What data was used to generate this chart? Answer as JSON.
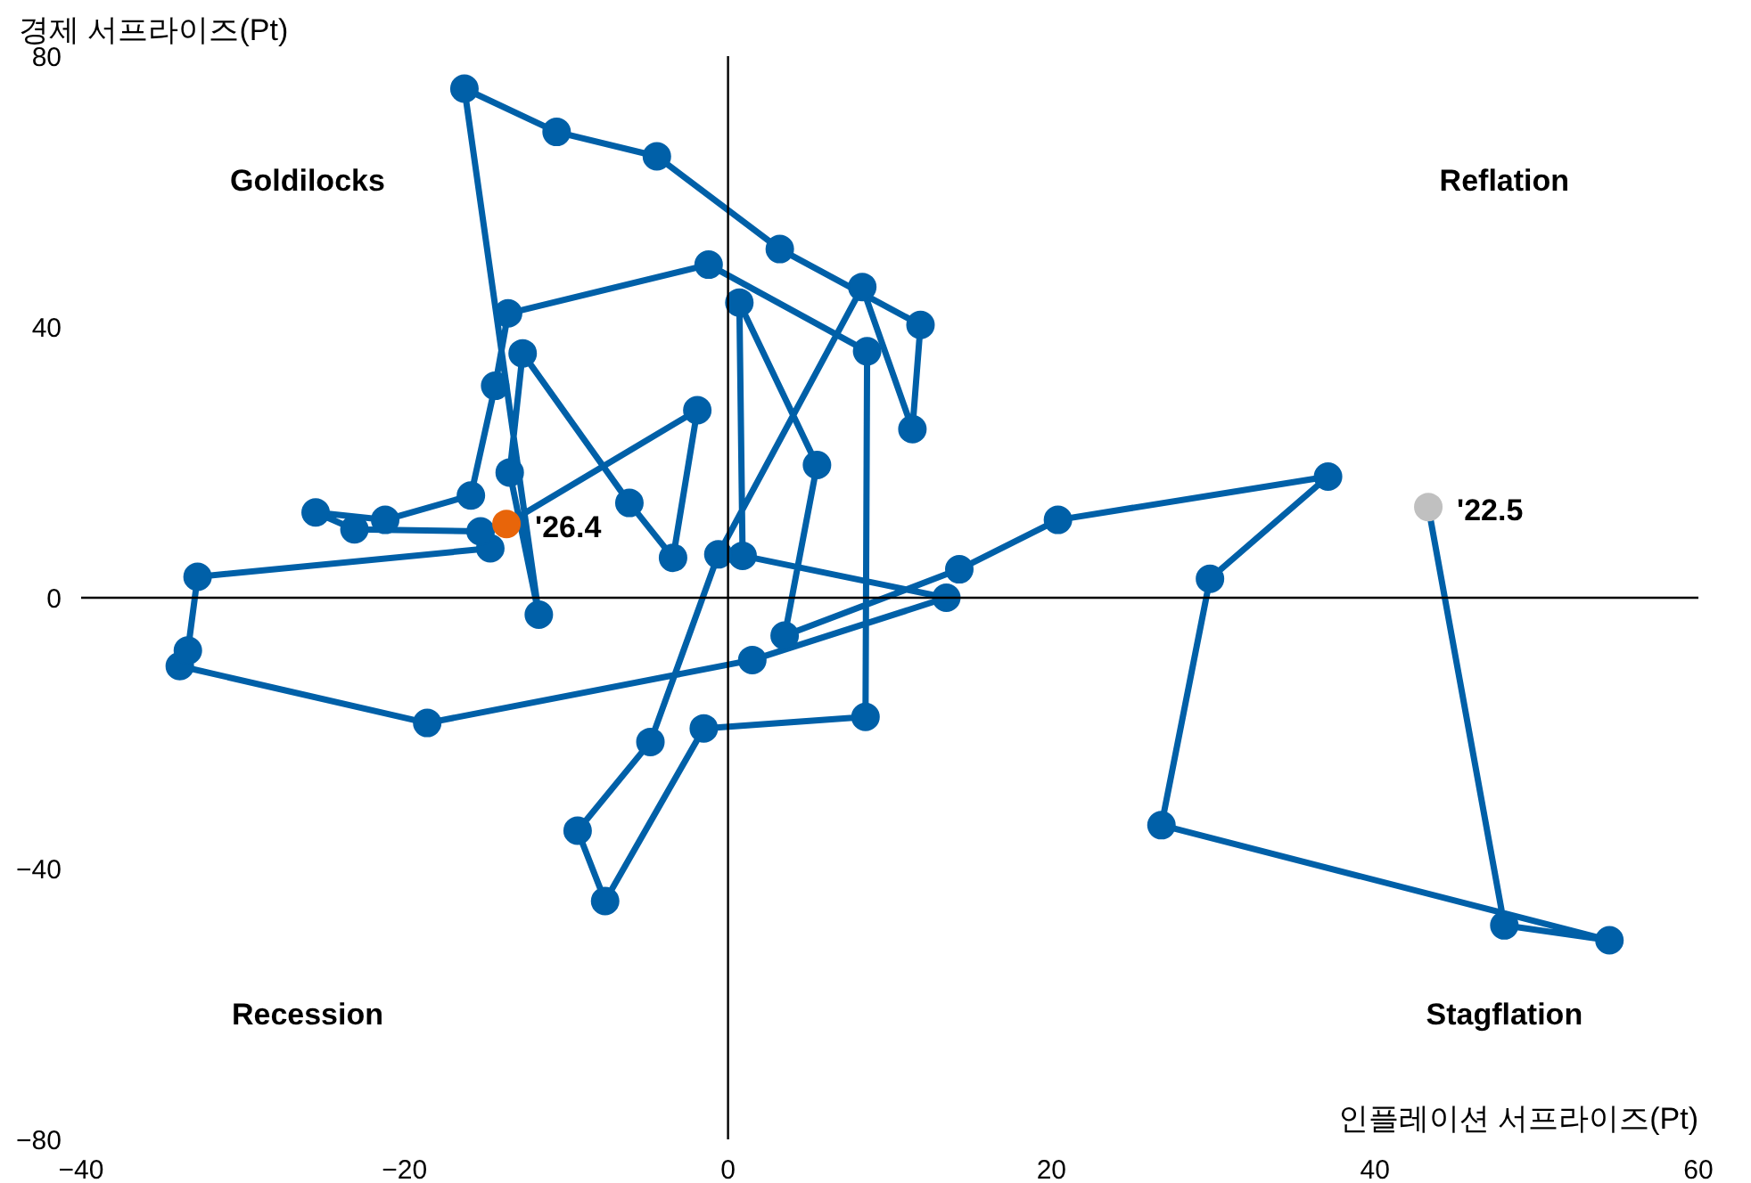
{
  "chart_data": {
    "type": "line",
    "xlabel": "인플레이션 서프라이즈(Pt)",
    "ylabel": "경제 서프라이즈(Pt)",
    "xlim": [
      -40,
      60
    ],
    "ylim": [
      -80,
      80
    ],
    "xticks": [
      -40,
      -20,
      0,
      20,
      40,
      60
    ],
    "yticks": [
      -80,
      -40,
      0,
      40,
      80
    ],
    "marker": "circle",
    "line_style": "solid",
    "annotations": [
      "Goldilocks",
      "Reflation",
      "Recession",
      "Stagflation",
      {
        "text": "'22.5",
        "x": 43.3,
        "y": 13.4
      },
      {
        "text": "'26.4",
        "x": -13.7,
        "y": 10.9
      }
    ],
    "series": [
      {
        "color": "#0060a8",
        "x": [
          43.3,
          48.0,
          54.5,
          26.8,
          29.8,
          37.1,
          20.4,
          14.3,
          3.5,
          5.5,
          0.7,
          0.9,
          13.5,
          1.5,
          -18.6,
          -33.9,
          -33.4,
          -32.8,
          -14.7,
          -15.3,
          -23.1,
          -25.5,
          -21.2,
          -15.9,
          -14.4,
          -13.6,
          -1.2,
          8.6,
          8.5,
          -1.5,
          -7.6,
          -9.3,
          -4.8,
          -0.6,
          8.3,
          11.4,
          11.9,
          3.2,
          -4.4,
          -10.6,
          -16.3,
          -11.7,
          -13.5,
          -12.7,
          -6.1,
          -3.4,
          -1.9,
          -13.7
        ],
        "values": [
          13.4,
          -48.4,
          -50.6,
          -33.6,
          2.8,
          17.9,
          11.5,
          4.2,
          -5.6,
          19.6,
          43.6,
          6.2,
          0,
          -9.2,
          -18.5,
          -10.1,
          -7.8,
          3.1,
          7.3,
          9.8,
          10.1,
          12.6,
          11.5,
          15.1,
          31.3,
          42.0,
          49.2,
          36.4,
          -17.6,
          -19.3,
          -44.8,
          -34.4,
          -21.3,
          6.4,
          45.9,
          24.9,
          40.3,
          51.5,
          65.2,
          68.8,
          75.2,
          -2.5,
          18.5,
          36.1,
          14.0,
          5.9,
          27.7,
          10.9
        ],
        "colors": [
          "#c0c0c0",
          "#0060a8",
          "#0060a8",
          "#0060a8",
          "#0060a8",
          "#0060a8",
          "#0060a8",
          "#0060a8",
          "#0060a8",
          "#0060a8",
          "#0060a8",
          "#0060a8",
          "#0060a8",
          "#0060a8",
          "#0060a8",
          "#0060a8",
          "#0060a8",
          "#0060a8",
          "#0060a8",
          "#0060a8",
          "#0060a8",
          "#0060a8",
          "#0060a8",
          "#0060a8",
          "#0060a8",
          "#0060a8",
          "#0060a8",
          "#0060a8",
          "#0060a8",
          "#0060a8",
          "#0060a8",
          "#0060a8",
          "#0060a8",
          "#0060a8",
          "#0060a8",
          "#0060a8",
          "#0060a8",
          "#0060a8",
          "#0060a8",
          "#0060a8",
          "#0060a8",
          "#0060a8",
          "#0060a8",
          "#0060a8",
          "#0060a8",
          "#0060a8",
          "#0060a8",
          "#e8650a"
        ]
      }
    ]
  }
}
